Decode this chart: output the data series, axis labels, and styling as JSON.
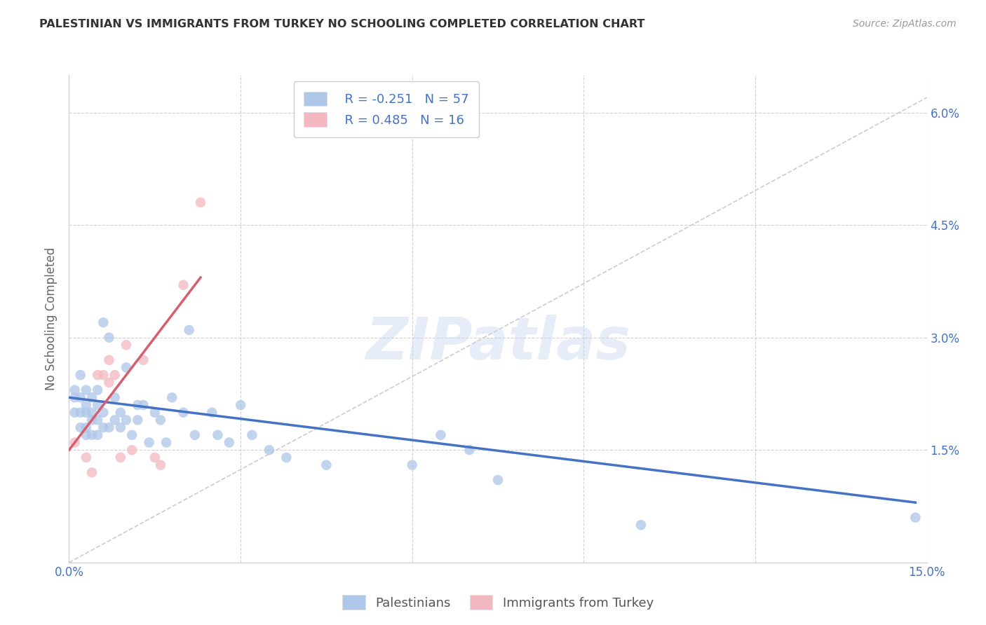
{
  "title": "PALESTINIAN VS IMMIGRANTS FROM TURKEY NO SCHOOLING COMPLETED CORRELATION CHART",
  "source": "Source: ZipAtlas.com",
  "ylabel": "No Schooling Completed",
  "y_ticks": [
    0.0,
    0.015,
    0.03,
    0.045,
    0.06
  ],
  "y_tick_labels": [
    "",
    "1.5%",
    "3.0%",
    "4.5%",
    "6.0%"
  ],
  "x_ticks": [
    0.0,
    0.03,
    0.06,
    0.09,
    0.12,
    0.15
  ],
  "x_tick_labels": [
    "0.0%",
    "",
    "",
    "",
    "",
    "15.0%"
  ],
  "xlim": [
    0.0,
    0.15
  ],
  "ylim": [
    0.0,
    0.065
  ],
  "legend_R1": "R = -0.251",
  "legend_N1": "N = 57",
  "legend_R2": "R = 0.485",
  "legend_N2": "N = 16",
  "blue_color": "#aec6e8",
  "pink_color": "#f4b8c1",
  "blue_line_color": "#4472c4",
  "pink_line_color": "#d45f6e",
  "r_n_color": "#4472c4",
  "watermark_text": "ZIPatlas",
  "blue_scatter_x": [
    0.001,
    0.001,
    0.001,
    0.002,
    0.002,
    0.002,
    0.002,
    0.003,
    0.003,
    0.003,
    0.003,
    0.003,
    0.004,
    0.004,
    0.004,
    0.004,
    0.005,
    0.005,
    0.005,
    0.005,
    0.006,
    0.006,
    0.006,
    0.007,
    0.007,
    0.008,
    0.008,
    0.009,
    0.009,
    0.01,
    0.01,
    0.011,
    0.012,
    0.012,
    0.013,
    0.014,
    0.015,
    0.016,
    0.017,
    0.018,
    0.02,
    0.021,
    0.022,
    0.025,
    0.026,
    0.028,
    0.03,
    0.032,
    0.035,
    0.038,
    0.045,
    0.06,
    0.065,
    0.07,
    0.075,
    0.1,
    0.148
  ],
  "blue_scatter_y": [
    0.023,
    0.022,
    0.02,
    0.025,
    0.022,
    0.02,
    0.018,
    0.023,
    0.021,
    0.02,
    0.018,
    0.017,
    0.022,
    0.02,
    0.019,
    0.017,
    0.023,
    0.021,
    0.019,
    0.017,
    0.032,
    0.02,
    0.018,
    0.03,
    0.018,
    0.022,
    0.019,
    0.02,
    0.018,
    0.026,
    0.019,
    0.017,
    0.021,
    0.019,
    0.021,
    0.016,
    0.02,
    0.019,
    0.016,
    0.022,
    0.02,
    0.031,
    0.017,
    0.02,
    0.017,
    0.016,
    0.021,
    0.017,
    0.015,
    0.014,
    0.013,
    0.013,
    0.017,
    0.015,
    0.011,
    0.005,
    0.006
  ],
  "pink_scatter_x": [
    0.001,
    0.003,
    0.004,
    0.005,
    0.006,
    0.007,
    0.007,
    0.008,
    0.009,
    0.01,
    0.011,
    0.013,
    0.015,
    0.016,
    0.02,
    0.023
  ],
  "pink_scatter_y": [
    0.016,
    0.014,
    0.012,
    0.025,
    0.025,
    0.027,
    0.024,
    0.025,
    0.014,
    0.029,
    0.015,
    0.027,
    0.014,
    0.013,
    0.037,
    0.048
  ],
  "blue_line_x": [
    0.0,
    0.148
  ],
  "blue_line_y": [
    0.022,
    0.008
  ],
  "pink_line_x": [
    0.0,
    0.023
  ],
  "pink_line_y": [
    0.015,
    0.038
  ],
  "dashed_line_x": [
    0.0,
    0.15
  ],
  "dashed_line_y": [
    0.0,
    0.062
  ],
  "background_color": "#ffffff",
  "grid_color": "#d0d0d0"
}
